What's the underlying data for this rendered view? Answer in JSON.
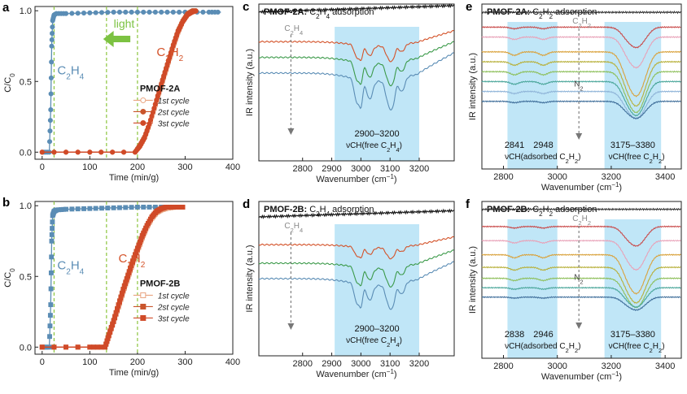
{
  "figure": {
    "colors": {
      "c2h4": "#5b8db5",
      "c2h2": "#d4532a",
      "light_arrow": "#7cc242",
      "green_dashes": "#8dc63f",
      "band": "#b9e3f6",
      "cycle1": "#e8a37f",
      "cycle2": "#c9552c",
      "cycle3": "#d04a28"
    }
  },
  "chart_data": [
    {
      "id": "a",
      "type": "line",
      "panel_label": "a",
      "xlabel": "Time (min/g)",
      "ylabel": "C/C0",
      "xlim": [
        -15,
        400
      ],
      "ylim": [
        -0.05,
        1.03
      ],
      "xticks": [
        "0",
        "100",
        "200",
        "300",
        "400"
      ],
      "yticks": [
        "0.0",
        "0.5",
        "1.0"
      ],
      "annot_c2h4": "C2H4",
      "annot_c2h2": "C2H2",
      "annot_light": "light",
      "material_title": "PMOF-2A",
      "vlines": [
        25,
        135,
        200
      ],
      "legend": [
        "1st cycle",
        "2st cycle",
        "3st cycle"
      ],
      "series": [
        {
          "name": "C2H4",
          "x": [
            0,
            15,
            18,
            20,
            22,
            25,
            30,
            50,
            100,
            150,
            200,
            250,
            300,
            350,
            375
          ],
          "values": [
            0,
            0,
            0.3,
            0.75,
            0.93,
            0.97,
            0.98,
            0.98,
            0.985,
            0.99,
            0.99,
            0.99,
            0.99,
            0.99,
            0.99
          ]
        },
        {
          "name": "1st cycle",
          "x": [
            0,
            100,
            195,
            205,
            215,
            225,
            235,
            245,
            255,
            265,
            275,
            285,
            295,
            305,
            315,
            325
          ],
          "values": [
            0,
            0,
            0,
            0.04,
            0.1,
            0.19,
            0.3,
            0.41,
            0.52,
            0.63,
            0.74,
            0.84,
            0.92,
            0.97,
            0.99,
            1.0
          ]
        },
        {
          "name": "2st cycle",
          "x": [
            0,
            100,
            195,
            205,
            215,
            225,
            235,
            245,
            255,
            265,
            275,
            285,
            295,
            305,
            315,
            325
          ],
          "values": [
            0,
            0,
            0,
            0.05,
            0.11,
            0.2,
            0.31,
            0.43,
            0.54,
            0.65,
            0.76,
            0.86,
            0.93,
            0.98,
            1.0,
            1.0
          ]
        },
        {
          "name": "3st cycle",
          "x": [
            0,
            100,
            195,
            205,
            215,
            225,
            235,
            245,
            255,
            265,
            275,
            285,
            295,
            305,
            315,
            325
          ],
          "values": [
            0,
            0,
            0,
            0.04,
            0.1,
            0.2,
            0.31,
            0.42,
            0.53,
            0.64,
            0.75,
            0.85,
            0.92,
            0.97,
            0.99,
            1.0
          ]
        }
      ]
    },
    {
      "id": "b",
      "type": "line",
      "panel_label": "b",
      "xlabel": "Time (min/g)",
      "ylabel": "C/C0",
      "xlim": [
        -15,
        400
      ],
      "ylim": [
        -0.05,
        1.03
      ],
      "xticks": [
        "0",
        "100",
        "200",
        "300",
        "400"
      ],
      "yticks": [
        "0.0",
        "0.5",
        "1.0"
      ],
      "annot_c2h4": "C2H4",
      "annot_c2h2": "C2H2",
      "material_title": "PMOF-2B",
      "vlines": [
        25,
        135,
        200
      ],
      "legend": [
        "1st cycle",
        "2st cycle",
        "3st cycle"
      ],
      "series": [
        {
          "name": "C2H4",
          "x": [
            0,
            15,
            18,
            20,
            22,
            25,
            30,
            50,
            100,
            150,
            200,
            250,
            300
          ],
          "values": [
            0,
            0,
            0.3,
            0.75,
            0.93,
            0.96,
            0.97,
            0.975,
            0.98,
            0.985,
            0.99,
            0.99,
            0.99
          ]
        },
        {
          "name": "1st cycle",
          "x": [
            0,
            100,
            132,
            140,
            150,
            160,
            170,
            180,
            190,
            200,
            210,
            220,
            230,
            240,
            250,
            260,
            280,
            300
          ],
          "values": [
            0,
            0,
            0,
            0.08,
            0.18,
            0.28,
            0.39,
            0.49,
            0.59,
            0.68,
            0.77,
            0.85,
            0.91,
            0.95,
            0.97,
            0.98,
            0.99,
            0.99
          ]
        },
        {
          "name": "2st cycle",
          "x": [
            0,
            100,
            132,
            140,
            150,
            160,
            170,
            180,
            190,
            200,
            210,
            220,
            230,
            240,
            250,
            260,
            280,
            300
          ],
          "values": [
            0,
            0,
            0,
            0.09,
            0.19,
            0.3,
            0.41,
            0.51,
            0.61,
            0.7,
            0.79,
            0.86,
            0.92,
            0.96,
            0.98,
            0.99,
            0.99,
            0.99
          ]
        },
        {
          "name": "3st cycle",
          "x": [
            0,
            100,
            132,
            140,
            150,
            160,
            170,
            180,
            190,
            200,
            210,
            220,
            230,
            240,
            250,
            260,
            280,
            300
          ],
          "values": [
            0,
            0,
            0,
            0.08,
            0.18,
            0.29,
            0.4,
            0.5,
            0.6,
            0.69,
            0.78,
            0.86,
            0.92,
            0.96,
            0.98,
            0.99,
            0.99,
            0.99
          ]
        }
      ]
    },
    {
      "id": "c",
      "type": "line",
      "panel_label": "c",
      "title_bold": "PMOF-2A:",
      "title_rest": " C2H4 adsorption",
      "xlabel": "Wavenumber (cm−1)",
      "ylabel": "IR intensity (a.u.)",
      "xlim": [
        2650,
        3320
      ],
      "xticks": [
        "2800",
        "2900",
        "3000",
        "3100",
        "3200"
      ],
      "band": [
        2910,
        3200
      ],
      "band_label": "2900–3200",
      "band_sublabel": "νCH(free C2H4)",
      "arrow_label": "C2H4",
      "bands_depth": "spectra shaped by absorption minima at 2985, 3000, 3110 cm−1",
      "series": [
        {
          "name": "reference",
          "offset": 0.95,
          "depth": 0.0,
          "color": "#111111"
        },
        {
          "name": "spectrum 1",
          "offset": 0.76,
          "depth": 0.14,
          "color": "#d4532a"
        },
        {
          "name": "spectrum 2",
          "offset": 0.66,
          "depth": 0.2,
          "color": "#3c9a4a"
        },
        {
          "name": "spectrum 3",
          "offset": 0.56,
          "depth": 0.26,
          "color": "#5b8db5"
        }
      ]
    },
    {
      "id": "d",
      "type": "line",
      "panel_label": "d",
      "title_bold": "PMOF-2B:",
      "title_rest": " C2H4 adsorption",
      "xlabel": "Wavenumber (cm−1)",
      "ylabel": "IR intensity (a.u.)",
      "xlim": [
        2650,
        3320
      ],
      "xticks": [
        "2800",
        "2900",
        "3000",
        "3100",
        "3200"
      ],
      "band": [
        2910,
        3200
      ],
      "band_label": "2900–3200",
      "band_sublabel": "νCH(free C2H4)",
      "arrow_label": "C2H4",
      "series": [
        {
          "name": "reference",
          "offset": 0.9,
          "depth": 0.0,
          "color": "#111111"
        },
        {
          "name": "spectrum 1",
          "offset": 0.72,
          "depth": 0.1,
          "color": "#d4532a"
        },
        {
          "name": "spectrum 2",
          "offset": 0.6,
          "depth": 0.17,
          "color": "#3c9a4a"
        },
        {
          "name": "spectrum 3",
          "offset": 0.5,
          "depth": 0.22,
          "color": "#5b8db5"
        }
      ]
    },
    {
      "id": "e",
      "type": "line",
      "panel_label": "e",
      "title_bold": "PMOF-2A:",
      "title_rest": " C2H2 adsorption",
      "xlabel": "Wavenumber (cm−1)",
      "ylabel": "IR intensity (a.u.)",
      "xlim": [
        2720,
        3460
      ],
      "xticks": [
        "2800",
        "3000",
        "3200",
        "3400"
      ],
      "band_left": [
        2815,
        3000
      ],
      "band_right": [
        3175,
        3385
      ],
      "peak_labels_left": [
        "2841",
        "2948"
      ],
      "sublabel_left": "νCH(adsorbed C2H2)",
      "band_label_right": "3175–3380",
      "sublabel_right": "νCH(free C2H2)",
      "arrow_label_top": "C2H2",
      "arrow_label_mid": "N2",
      "series": [
        {
          "name": "reference",
          "offset": 0.95,
          "depth": 0.0,
          "color": "#333333"
        },
        {
          "name": "s1",
          "offset": 0.86,
          "depth": 0.12,
          "color": "#c94a4a"
        },
        {
          "name": "s2",
          "offset": 0.8,
          "depth": 0.18,
          "color": "#e8a2b8"
        },
        {
          "name": "s3",
          "offset": 0.71,
          "depth": 0.26,
          "color": "#d9a23c"
        },
        {
          "name": "s4",
          "offset": 0.65,
          "depth": 0.26,
          "color": "#b7b03a"
        },
        {
          "name": "s5",
          "offset": 0.59,
          "depth": 0.24,
          "color": "#8dbf5a"
        },
        {
          "name": "s6",
          "offset": 0.53,
          "depth": 0.2,
          "color": "#4aa69a"
        },
        {
          "name": "s7",
          "offset": 0.47,
          "depth": 0.16,
          "color": "#8fb4d8"
        },
        {
          "name": "s8",
          "offset": 0.41,
          "depth": 0.1,
          "color": "#3f6e9a"
        }
      ]
    },
    {
      "id": "f",
      "type": "line",
      "panel_label": "f",
      "title_bold": "PMOF-2B:",
      "title_rest": " C2H2 adsorption",
      "xlabel": "Wavenumber (cm−1)",
      "ylabel": "IR intensity (a.u.)",
      "xlim": [
        2720,
        3460
      ],
      "xticks": [
        "2800",
        "3000",
        "3200",
        "3400"
      ],
      "band_left": [
        2815,
        3000
      ],
      "band_right": [
        3175,
        3385
      ],
      "peak_labels_left": [
        "2838",
        "2946"
      ],
      "sublabel_left": "νCH(adsorbed C2H2)",
      "band_label_right": "3175–3380",
      "sublabel_right": "νCH(free C2H2)",
      "arrow_label_top": "C2H2",
      "arrow_label_mid": "N2",
      "series": [
        {
          "name": "reference",
          "offset": 0.95,
          "depth": 0.0,
          "color": "#333333"
        },
        {
          "name": "s1",
          "offset": 0.84,
          "depth": 0.12,
          "color": "#c94a4a"
        },
        {
          "name": "s2",
          "offset": 0.75,
          "depth": 0.18,
          "color": "#e8a2b8"
        },
        {
          "name": "s3",
          "offset": 0.66,
          "depth": 0.24,
          "color": "#d9a23c"
        },
        {
          "name": "s4",
          "offset": 0.58,
          "depth": 0.22,
          "color": "#b7b03a"
        },
        {
          "name": "s5",
          "offset": 0.51,
          "depth": 0.18,
          "color": "#8dbf5a"
        },
        {
          "name": "s6",
          "offset": 0.45,
          "depth": 0.12,
          "color": "#4aa69a"
        },
        {
          "name": "s7",
          "offset": 0.39,
          "depth": 0.08,
          "color": "#3f6e9a"
        }
      ]
    }
  ]
}
